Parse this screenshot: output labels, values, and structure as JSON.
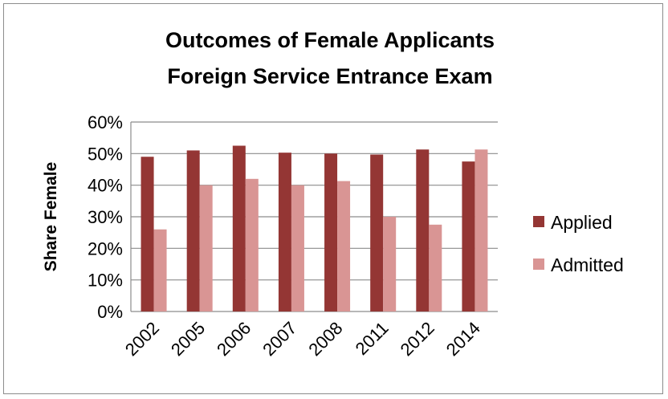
{
  "chart_data": {
    "type": "bar",
    "title": "Outcomes of Female Applicants",
    "subtitle": "Foreign Service Entrance Exam",
    "xlabel": "",
    "ylabel": "Share Female",
    "categories": [
      "2002",
      "2005",
      "2006",
      "2007",
      "2008",
      "2011",
      "2012",
      "2014"
    ],
    "series": [
      {
        "name": "Applied",
        "color": "#943634",
        "values": [
          49,
          51,
          52.5,
          50.3,
          50,
          49.7,
          51.3,
          47.5
        ]
      },
      {
        "name": "Admitted",
        "color": "#d99594",
        "values": [
          26,
          40,
          42,
          40,
          41.3,
          30,
          27.5,
          51.3
        ]
      }
    ],
    "ylim": [
      0,
      60
    ],
    "yticks": [
      "0%",
      "10%",
      "20%",
      "30%",
      "40%",
      "50%",
      "60%"
    ],
    "grid": true,
    "legend_position": "right"
  }
}
